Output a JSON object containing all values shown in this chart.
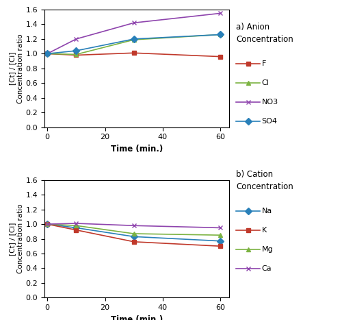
{
  "time": [
    0,
    10,
    30,
    60
  ],
  "anion": {
    "F": [
      1.0,
      0.98,
      1.01,
      0.96
    ],
    "Cl": [
      1.0,
      0.99,
      1.19,
      1.26
    ],
    "NO3": [
      1.0,
      1.2,
      1.42,
      1.55
    ],
    "SO4": [
      1.0,
      1.04,
      1.2,
      1.26
    ]
  },
  "cation": {
    "Na": [
      1.0,
      0.95,
      0.83,
      0.77
    ],
    "K": [
      1.0,
      0.92,
      0.76,
      0.7
    ],
    "Mg": [
      1.0,
      0.98,
      0.87,
      0.85
    ],
    "Ca": [
      1.0,
      1.01,
      0.98,
      0.95
    ]
  },
  "anion_colors": {
    "F": "#c0392b",
    "Cl": "#7cb342",
    "NO3": "#8e44ad",
    "SO4": "#2980b9"
  },
  "cation_colors": {
    "Na": "#2980b9",
    "K": "#c0392b",
    "Mg": "#7cb342",
    "Ca": "#8e44ad"
  },
  "anion_markers": {
    "F": "s",
    "Cl": "^",
    "NO3": "x",
    "SO4": "D"
  },
  "cation_markers": {
    "Na": "D",
    "K": "s",
    "Mg": "^",
    "Ca": "x"
  },
  "ylabel": "[Ct] / [Ci]\nConcentration ratio",
  "xlabel": "Time (min.)",
  "ylim": [
    0.0,
    1.6
  ],
  "yticks": [
    0.0,
    0.2,
    0.4,
    0.6,
    0.8,
    1.0,
    1.2,
    1.4,
    1.6
  ],
  "xticks": [
    0,
    20,
    40,
    60
  ],
  "title_a_line1": "a) Anion",
  "title_a_line2": "Concentration",
  "title_b_line1": "b) Cation",
  "title_b_line2": "Concentration",
  "figwidth": 5.0,
  "figheight": 4.67,
  "dpi": 100
}
